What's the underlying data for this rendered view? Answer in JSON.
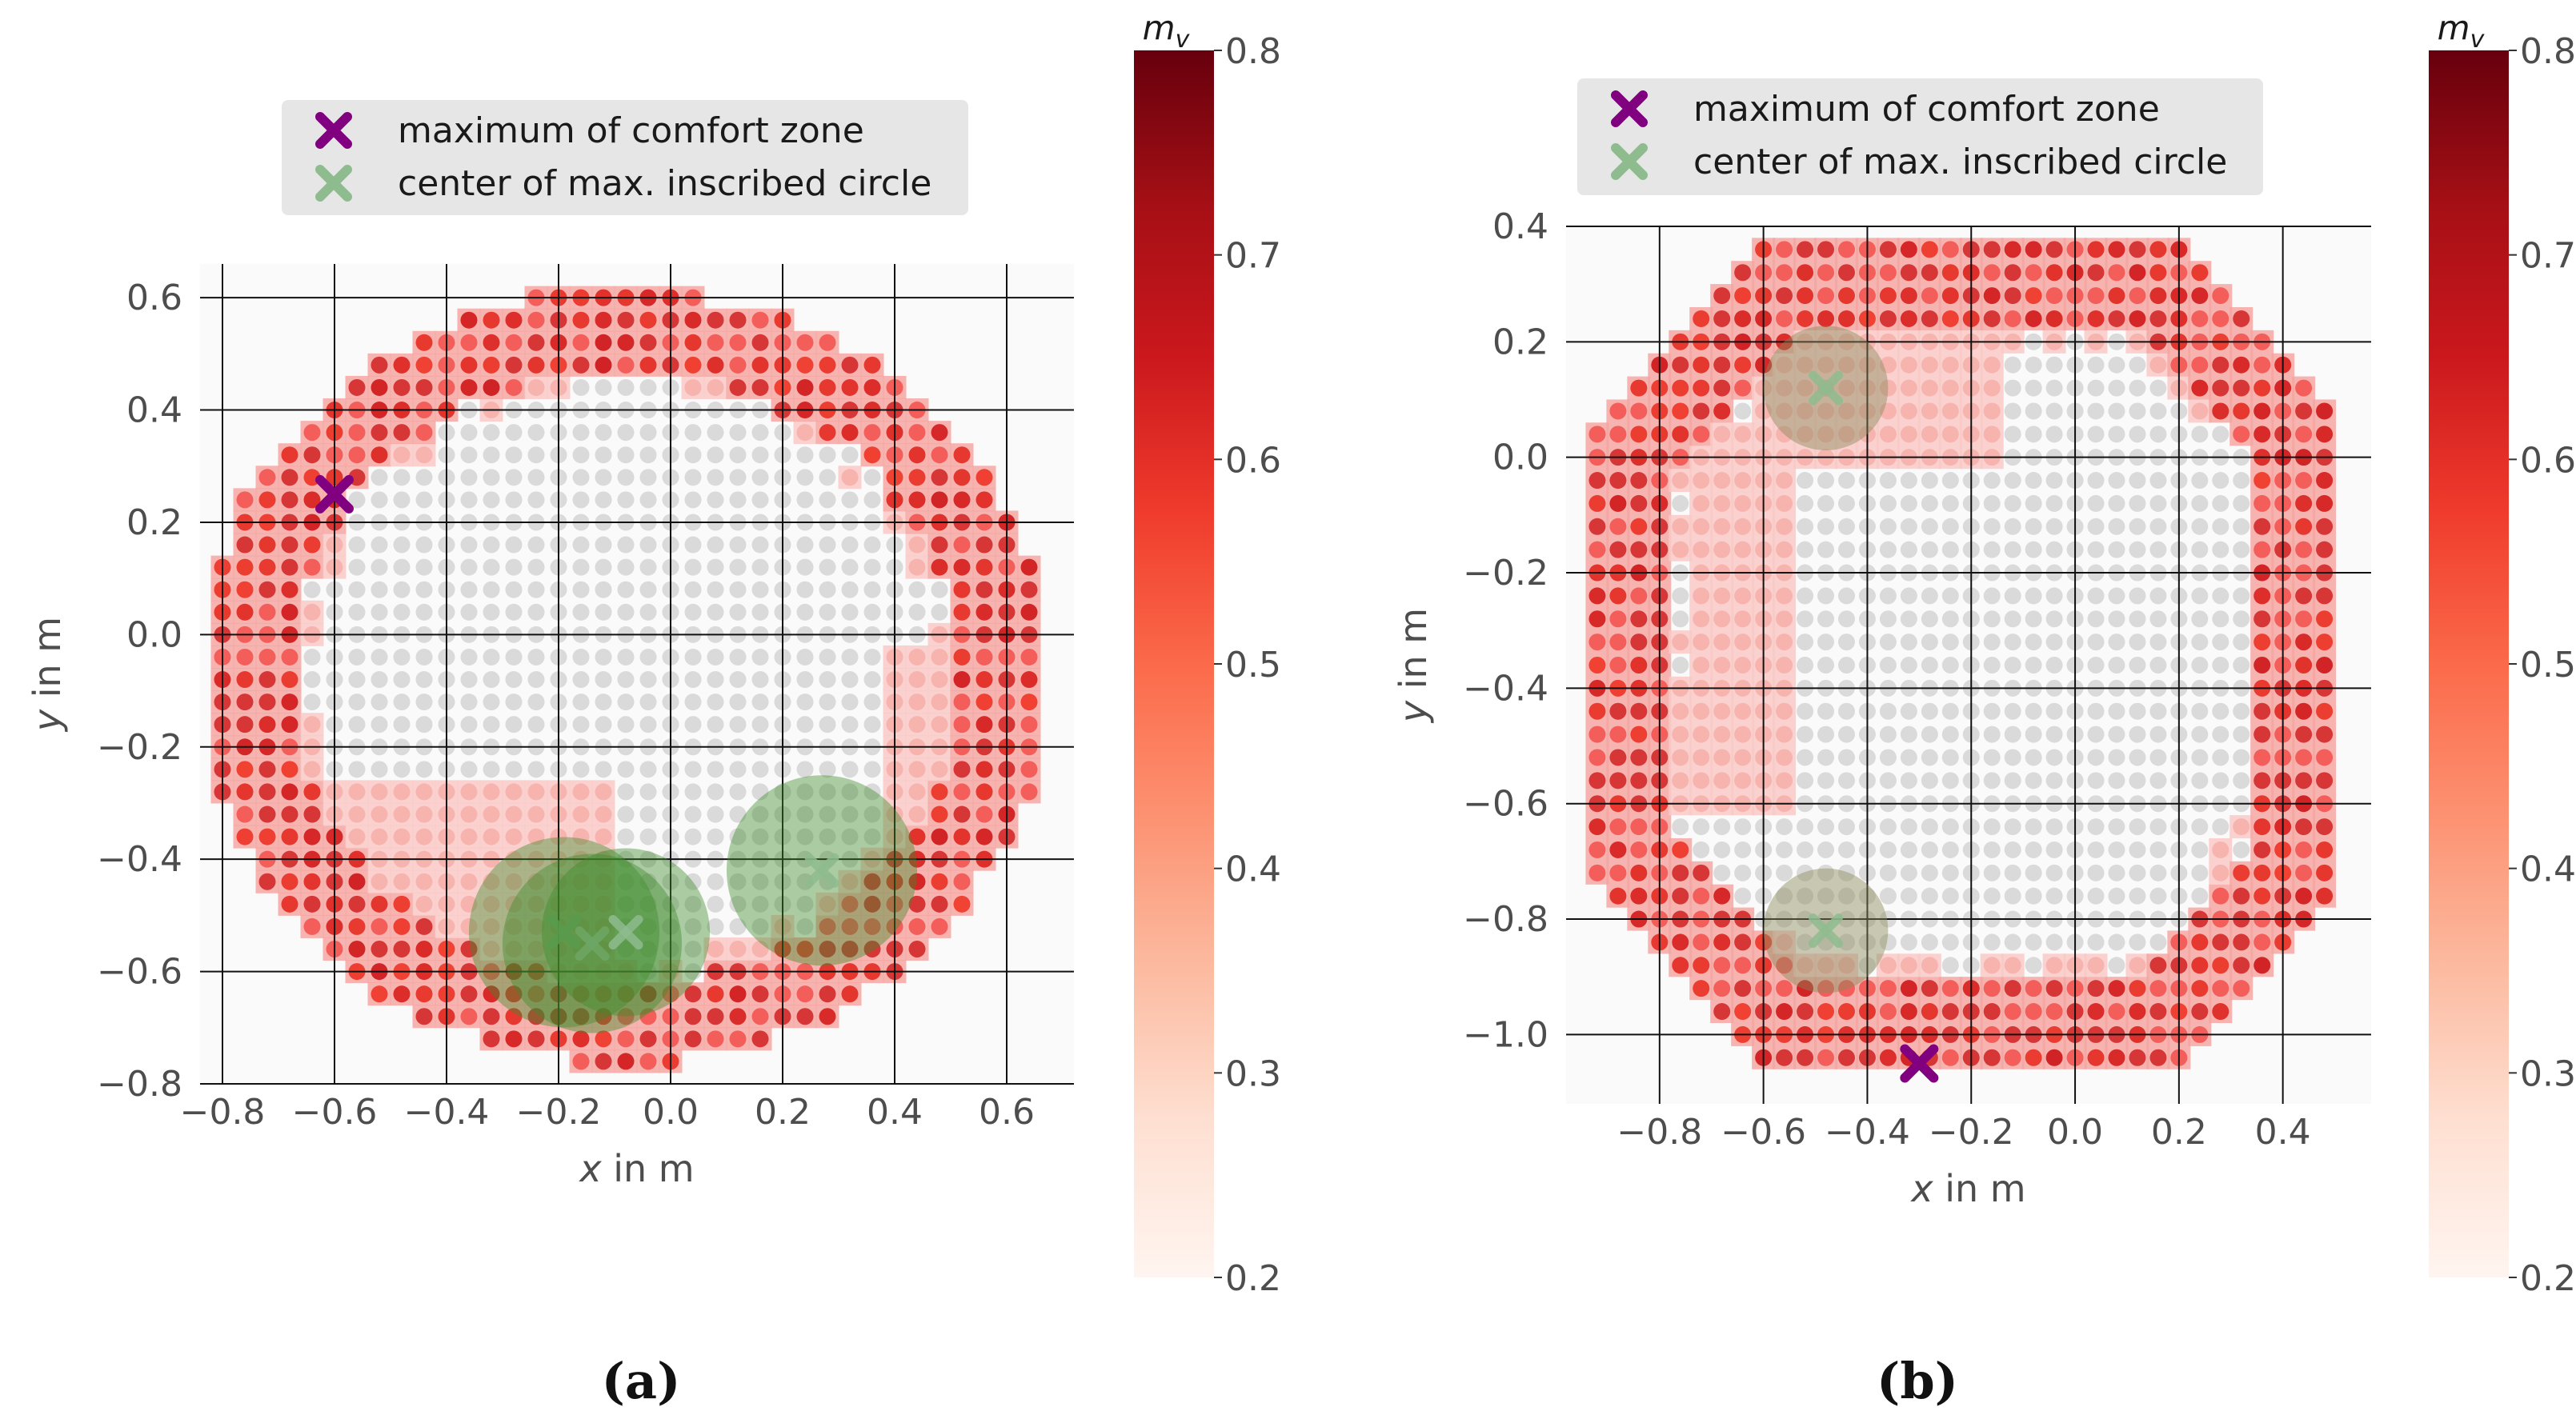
{
  "chart_data": [
    {
      "panel": "a",
      "caption": "(a)",
      "type": "scatter",
      "xlabel_var": "x",
      "xlabel_unit": " in m",
      "ylabel_var": "y",
      "ylabel_unit": " in m",
      "xlim": [
        -0.84,
        0.72
      ],
      "ylim": [
        -0.8,
        0.66
      ],
      "xticks": [
        -0.8,
        -0.6,
        -0.4,
        -0.2,
        0.0,
        0.2,
        0.4,
        0.6
      ],
      "xtick_labels": [
        "−0.8",
        "−0.6",
        "−0.4",
        "−0.2",
        "0.0",
        "0.2",
        "0.4",
        "0.6"
      ],
      "yticks": [
        -0.8,
        -0.6,
        -0.4,
        -0.2,
        0.0,
        0.2,
        0.4,
        0.6
      ],
      "ytick_labels": [
        "−0.8",
        "−0.6",
        "−0.4",
        "−0.2",
        "0.0",
        "0.2",
        "0.4",
        "0.6"
      ],
      "grid": true,
      "grid_step": 0.04,
      "region": {
        "center": [
          -0.085,
          -0.075
        ],
        "rx": 0.76,
        "ry": 0.69,
        "ring_width": 0.15,
        "inner_gap": 0.02
      },
      "pink_shoulders": [
        {
          "x": [
            -0.62,
            -0.1
          ],
          "y": [
            -0.8,
            -0.24
          ],
          "note": "lower-left transition band"
        },
        {
          "x": [
            0.4,
            0.64
          ],
          "y": [
            -0.46,
            -0.02
          ],
          "note": "right transition band"
        }
      ],
      "legend": {
        "placement": "top-center",
        "entries": [
          {
            "label": "maximum of comfort zone",
            "marker": "x",
            "color": "#800080"
          },
          {
            "label": "center of max. inscribed circle",
            "marker": "x",
            "color": "#8fbc8f"
          }
        ]
      },
      "max_comfort_zone": {
        "x": -0.6,
        "y": 0.25
      },
      "inscribed_circles": [
        {
          "cx": -0.19,
          "cy": -0.53,
          "r": 0.17
        },
        {
          "cx": -0.14,
          "cy": -0.55,
          "r": 0.16
        },
        {
          "cx": -0.08,
          "cy": -0.53,
          "r": 0.15
        },
        {
          "cx": 0.27,
          "cy": -0.42,
          "r": 0.17
        }
      ],
      "colorbar": {
        "label": "m_v",
        "label_main": "m",
        "label_sub": "v",
        "range": [
          0.2,
          0.8
        ],
        "ticks": [
          0.2,
          0.3,
          0.4,
          0.5,
          0.6,
          0.7,
          0.8
        ],
        "tick_labels": [
          "0.2",
          "0.3",
          "0.4",
          "0.5",
          "0.6",
          "0.7",
          "0.8"
        ],
        "colormap": "Reds",
        "stops": [
          "#fff5f0",
          "#fee0d2",
          "#fcbba1",
          "#fc9272",
          "#fb6a4a",
          "#ef3b2c",
          "#cb181d",
          "#a50f15",
          "#67000d"
        ]
      },
      "point_colors": {
        "inside": "#d4d4d4",
        "ring_dark": "#d42f2f",
        "ring_mid": "#f25a55",
        "pink": "#f7b2ad"
      }
    },
    {
      "panel": "b",
      "caption": "(b)",
      "type": "scatter",
      "xlabel_var": "x",
      "xlabel_unit": " in m",
      "ylabel_var": "y",
      "ylabel_unit": " in m",
      "xlim": [
        -0.98,
        0.57
      ],
      "ylim": [
        -1.12,
        0.4
      ],
      "xticks": [
        -0.8,
        -0.6,
        -0.4,
        -0.2,
        0.0,
        0.2,
        0.4
      ],
      "xtick_labels": [
        "−0.8",
        "−0.6",
        "−0.4",
        "−0.2",
        "0.0",
        "0.2",
        "0.4"
      ],
      "yticks": [
        -1.0,
        -0.8,
        -0.6,
        -0.4,
        -0.2,
        0.0,
        0.2,
        0.4
      ],
      "ytick_labels": [
        "−1.0",
        "−0.8",
        "−0.6",
        "−0.4",
        "−0.2",
        "0.0",
        "0.2",
        "0.4"
      ],
      "grid": true,
      "grid_step": 0.04,
      "region": {
        "center": [
          -0.21,
          -0.34
        ],
        "hx": 0.73,
        "hy": 0.72,
        "corner_cut": 0.98,
        "ring_width": 0.16
      },
      "pink_shoulders": [
        {
          "x": [
            -0.74,
            -0.54
          ],
          "y": [
            -0.62,
            0.06
          ],
          "note": "left transition band"
        },
        {
          "x": [
            -0.62,
            -0.12
          ],
          "y": [
            0.0,
            0.22
          ],
          "note": "upper transition band"
        }
      ],
      "legend": {
        "placement": "top-center",
        "entries": [
          {
            "label": "maximum of comfort zone",
            "marker": "x",
            "color": "#800080"
          },
          {
            "label": "center of max. inscribed circle",
            "marker": "x",
            "color": "#8fbc8f"
          }
        ]
      },
      "max_comfort_zone": {
        "x": -0.3,
        "y": -1.05
      },
      "inscribed_circles": [
        {
          "cx": -0.48,
          "cy": 0.12,
          "r": 0.12
        },
        {
          "cx": -0.48,
          "cy": -0.82,
          "r": 0.12
        }
      ],
      "colorbar": {
        "label": "m_v",
        "label_main": "m",
        "label_sub": "v",
        "range": [
          0.2,
          0.8
        ],
        "ticks": [
          0.2,
          0.3,
          0.4,
          0.5,
          0.6,
          0.7,
          0.8
        ],
        "tick_labels": [
          "0.2",
          "0.3",
          "0.4",
          "0.5",
          "0.6",
          "0.7",
          "0.8"
        ],
        "colormap": "Reds",
        "stops": [
          "#fff5f0",
          "#fee0d2",
          "#fcbba1",
          "#fc9272",
          "#fb6a4a",
          "#ef3b2c",
          "#cb181d",
          "#a50f15",
          "#67000d"
        ]
      },
      "point_colors": {
        "inside": "#d4d4d4",
        "ring_dark": "#d42f2f",
        "ring_mid": "#f25a55",
        "pink": "#f7b2ad"
      }
    }
  ]
}
